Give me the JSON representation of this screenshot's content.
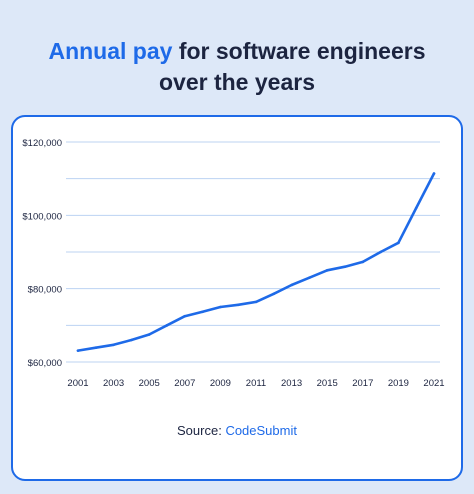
{
  "title": {
    "highlight": "Annual pay",
    "rest": "for software engineers",
    "line2": "over the years"
  },
  "source": {
    "label": "Source:",
    "name": "CodeSubmit"
  },
  "colors": {
    "accent": "#1e6ae8",
    "background": "#dde8f8",
    "text": "#1c2440",
    "grid": "#bcd3f2"
  },
  "chart_data": {
    "type": "line",
    "title": "Annual pay for software engineers over the years",
    "xlabel": "",
    "ylabel": "",
    "x": [
      2001,
      2002,
      2003,
      2004,
      2005,
      2006,
      2007,
      2008,
      2009,
      2010,
      2011,
      2012,
      2013,
      2014,
      2015,
      2016,
      2017,
      2018,
      2019,
      2020,
      2021
    ],
    "series": [
      {
        "values": [
          63100,
          63900,
          64700,
          66000,
          67500,
          70000,
          72500,
          73700,
          75000,
          75600,
          76400,
          78600,
          81000,
          83000,
          85000,
          86000,
          87300,
          90000,
          92500,
          102000,
          111400
        ]
      }
    ],
    "xticks": [
      2001,
      2003,
      2005,
      2007,
      2009,
      2011,
      2013,
      2015,
      2017,
      2019,
      2021
    ],
    "xtick_labels": [
      "2001",
      "2003",
      "2005",
      "2007",
      "2009",
      "2011",
      "2013",
      "2015",
      "2017",
      "2019",
      "2021"
    ],
    "yticks": [
      60000,
      80000,
      100000,
      120000
    ],
    "ytick_labels": [
      "$60,000",
      "$80,000",
      "$100,000",
      "$120,000"
    ],
    "xlim": [
      2001,
      2021
    ],
    "ylim": [
      60000,
      120000
    ],
    "grid": true,
    "grid_step": 10000
  }
}
